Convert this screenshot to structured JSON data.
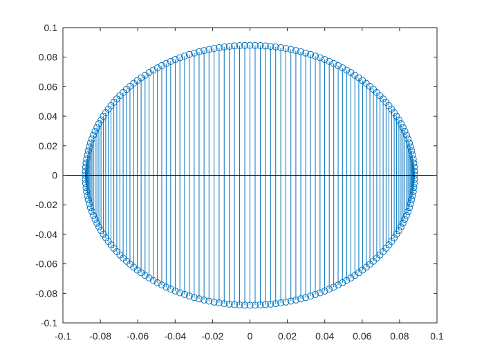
{
  "chart_data": {
    "type": "stem",
    "title": "",
    "xlabel": "",
    "ylabel": "",
    "xlim": [
      -0.1,
      0.1
    ],
    "ylim": [
      -0.1,
      0.1
    ],
    "x_ticks": [
      "-0.1",
      "-0.08",
      "-0.06",
      "-0.04",
      "-0.02",
      "0",
      "0.02",
      "0.04",
      "0.06",
      "0.08",
      "0.1"
    ],
    "y_ticks": [
      "-0.1",
      "-0.08",
      "-0.06",
      "-0.04",
      "-0.02",
      "0",
      "0.02",
      "0.04",
      "0.06",
      "0.08",
      "0.1"
    ],
    "grid": false,
    "baseline": 0,
    "marker": "circle",
    "series_color": "#0072bd",
    "series": [
      {
        "description_of_points": "circle of radius 0.088 centred at origin, 200 evenly spaced angles",
        "radius": 0.088,
        "num_points": 200
      }
    ]
  }
}
